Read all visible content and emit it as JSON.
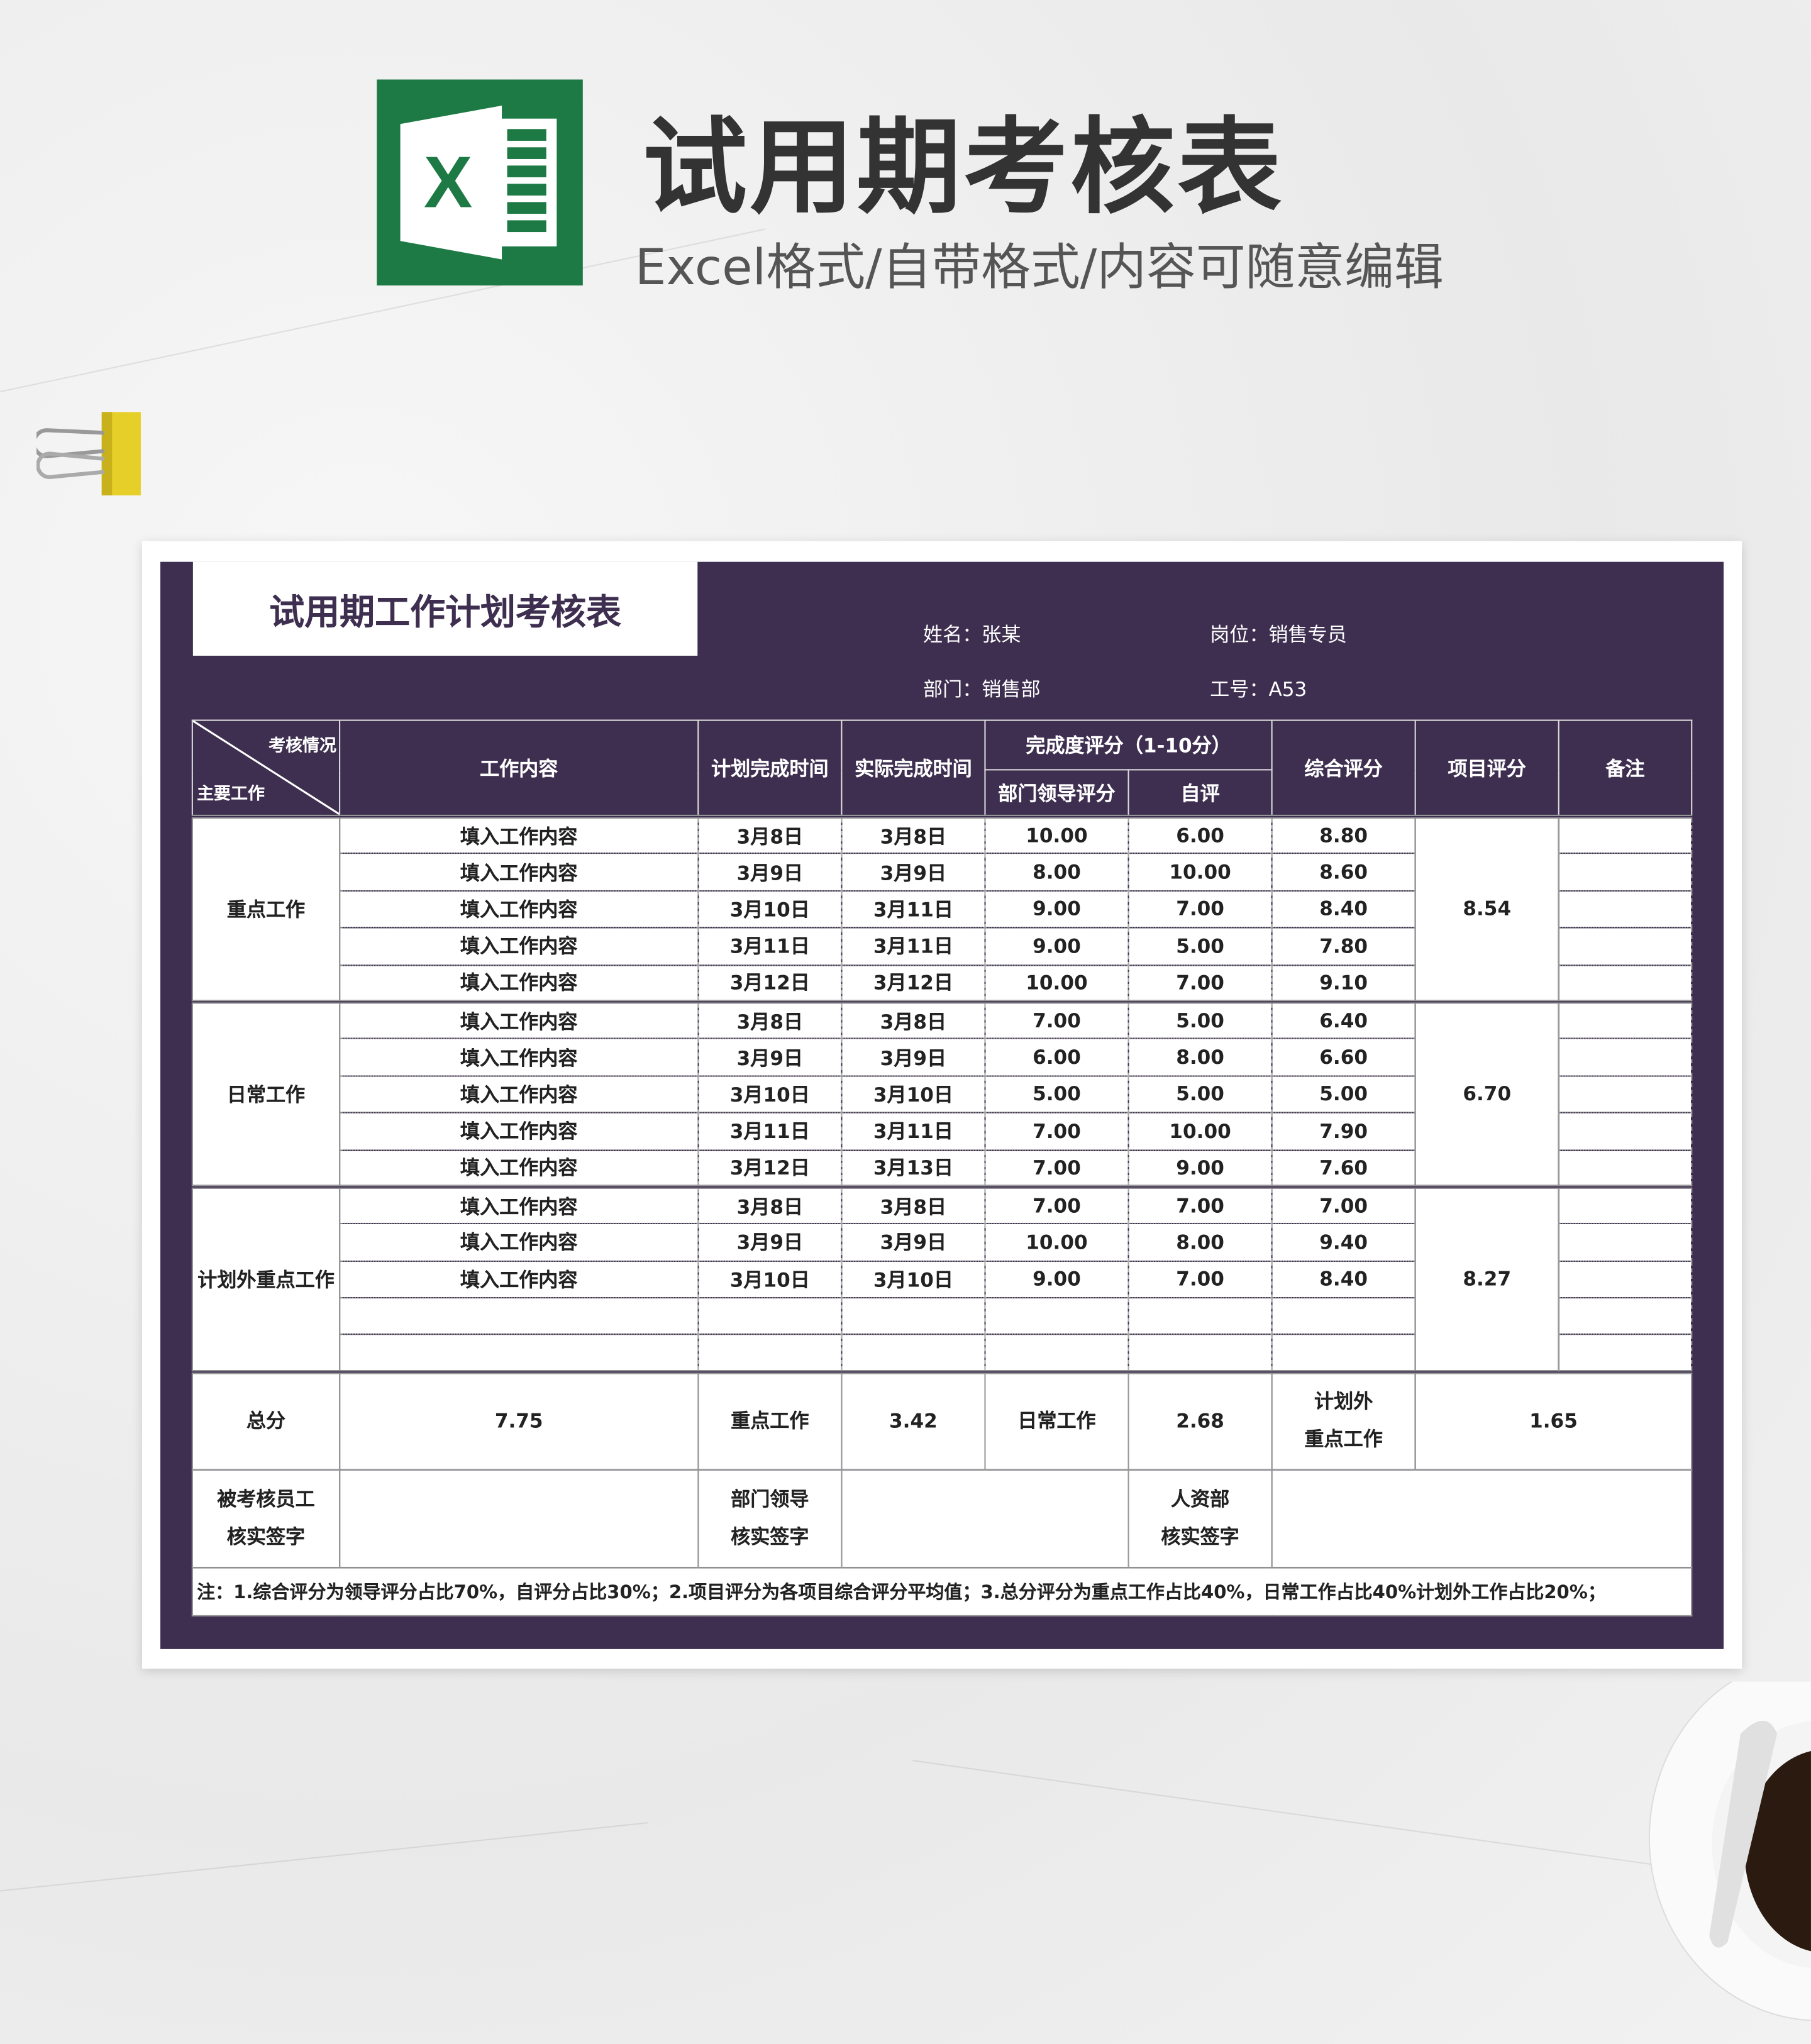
{
  "banner": {
    "title": "试用期考核表",
    "subtitle": "Excel格式/自带格式/内容可随意编辑",
    "logo_letter": "X"
  },
  "colors": {
    "panel": "#3e2f50",
    "logo": "#1e7a45"
  },
  "sheet": {
    "title": "试用期工作计划考核表",
    "info": {
      "name_label": "姓名：",
      "name": "张某",
      "post_label": "岗位：",
      "post": "销售专员",
      "dept_label": "部门：",
      "dept": "销售部",
      "id_label": "工号：",
      "id": "A53"
    },
    "headers": {
      "diag_top": "考核情况",
      "diag_bottom": "主要工作",
      "content": "工作内容",
      "plan_time": "计划完成时间",
      "actual_time": "实际完成时间",
      "completion": "完成度评分（1-10分）",
      "leader_score": "部门领导评分",
      "self_score": "自评",
      "overall": "综合评分",
      "project_score": "项目评分",
      "remark": "备注"
    },
    "groups": [
      {
        "name": "重点工作",
        "project_score": "8.54",
        "rows": [
          [
            "填入工作内容",
            "3月8日",
            "3月8日",
            "10.00",
            "6.00",
            "8.80"
          ],
          [
            "填入工作内容",
            "3月9日",
            "3月9日",
            "8.00",
            "10.00",
            "8.60"
          ],
          [
            "填入工作内容",
            "3月10日",
            "3月11日",
            "9.00",
            "7.00",
            "8.40"
          ],
          [
            "填入工作内容",
            "3月11日",
            "3月11日",
            "9.00",
            "5.00",
            "7.80"
          ],
          [
            "填入工作内容",
            "3月12日",
            "3月12日",
            "10.00",
            "7.00",
            "9.10"
          ]
        ]
      },
      {
        "name": "日常工作",
        "project_score": "6.70",
        "rows": [
          [
            "填入工作内容",
            "3月8日",
            "3月8日",
            "7.00",
            "5.00",
            "6.40"
          ],
          [
            "填入工作内容",
            "3月9日",
            "3月9日",
            "6.00",
            "8.00",
            "6.60"
          ],
          [
            "填入工作内容",
            "3月10日",
            "3月10日",
            "5.00",
            "5.00",
            "5.00"
          ],
          [
            "填入工作内容",
            "3月11日",
            "3月11日",
            "7.00",
            "10.00",
            "7.90"
          ],
          [
            "填入工作内容",
            "3月12日",
            "3月13日",
            "7.00",
            "9.00",
            "7.60"
          ]
        ]
      },
      {
        "name": "计划外重点工作",
        "project_score": "8.27",
        "rows": [
          [
            "填入工作内容",
            "3月8日",
            "3月8日",
            "7.00",
            "7.00",
            "7.00"
          ],
          [
            "填入工作内容",
            "3月9日",
            "3月9日",
            "10.00",
            "8.00",
            "9.40"
          ],
          [
            "填入工作内容",
            "3月10日",
            "3月10日",
            "9.00",
            "7.00",
            "8.40"
          ],
          [
            "",
            "",
            "",
            "",
            "",
            ""
          ],
          [
            "",
            "",
            "",
            "",
            "",
            ""
          ]
        ]
      }
    ],
    "totals": {
      "total_label": "总分",
      "total": "7.75",
      "key_label": "重点工作",
      "key": "3.42",
      "daily_label": "日常工作",
      "daily": "2.68",
      "extra_label_1": "计划外",
      "extra_label_2": "重点工作",
      "extra": "1.65"
    },
    "signatures": {
      "employee_1": "被考核员工",
      "employee_2": "核实签字",
      "leader_1": "部门领导",
      "leader_2": "核实签字",
      "hr_1": "人资部",
      "hr_2": "核实签字"
    },
    "note": "注：1.综合评分为领导评分占比70%，自评分占比30%；2.项目评分为各项目综合评分平均值；3.总分评分为重点工作占比40%，日常工作占比40%计划外工作占比20%；"
  }
}
